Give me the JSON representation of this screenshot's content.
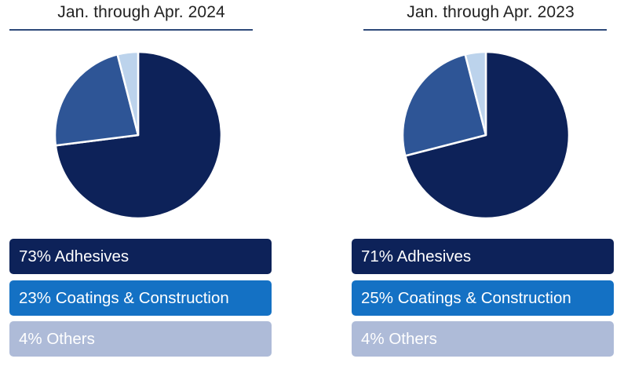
{
  "chart_data": [
    {
      "type": "pie",
      "title": "Jan. through Apr. 2024",
      "slices": [
        {
          "label": "73% Adhesives",
          "value": 73,
          "color": "#0d2259"
        },
        {
          "label": "23% Coatings & Construction",
          "value": 23,
          "color": "#2e5596"
        },
        {
          "label": "4% Others",
          "value": 4,
          "color": "#bcd3ec"
        }
      ],
      "legend_colors": [
        "#0d2259",
        "#1471c4",
        "#aebbd8"
      ]
    },
    {
      "type": "pie",
      "title": "Jan. through Apr. 2023",
      "slices": [
        {
          "label": "71% Adhesives",
          "value": 71,
          "color": "#0d2259"
        },
        {
          "label": "25% Coatings & Construction",
          "value": 25,
          "color": "#2e5596"
        },
        {
          "label": "4% Others",
          "value": 4,
          "color": "#bcd3ec"
        }
      ],
      "legend_colors": [
        "#0d2259",
        "#1471c4",
        "#aebbd8"
      ]
    }
  ]
}
